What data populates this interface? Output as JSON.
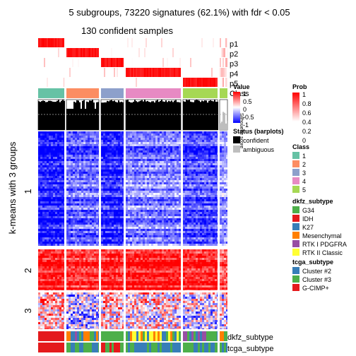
{
  "title": "5 subgroups, 73220 signatures (62.1%) with fdr < 0.05",
  "subtitle": "130 confident samples",
  "row_axis_label": "k-means with 3 groups",
  "row_groups": [
    "1",
    "2",
    "3"
  ],
  "track_labels": {
    "p1": "p1",
    "p2": "p2",
    "p3": "p3",
    "p4": "p4",
    "p5": "p5",
    "class": "Class",
    "silhouette": "Silhouette\nscore"
  },
  "bottom_labels": {
    "dkfz": "dkfz_subtype",
    "tcga": "tcga_subtype"
  },
  "legends": {
    "value": {
      "title": "Value",
      "ticks": [
        "1",
        "0.5",
        "0",
        "-0.5",
        "-1"
      ]
    },
    "status": {
      "title": "Status (barplots)",
      "items": [
        {
          "label": "confident",
          "color": "#000000"
        },
        {
          "label": "ambiguous",
          "color": "#bebebe"
        }
      ]
    },
    "prob": {
      "title": "Prob",
      "ticks": [
        "1",
        "0.8",
        "0.6",
        "0.4",
        "0.2",
        "0"
      ]
    },
    "class": {
      "title": "Class",
      "items": [
        {
          "label": "1",
          "color": "#66c2a5"
        },
        {
          "label": "2",
          "color": "#fc8d62"
        },
        {
          "label": "3",
          "color": "#8da0cb"
        },
        {
          "label": "4",
          "color": "#e78ac3"
        },
        {
          "label": "5",
          "color": "#a6d854"
        }
      ]
    },
    "dkfz": {
      "title": "dkfz_subtype",
      "items": [
        {
          "label": "G34",
          "color": "#4daf4a"
        },
        {
          "label": "IDH",
          "color": "#e41a1c"
        },
        {
          "label": "K27",
          "color": "#377eb8"
        },
        {
          "label": "Mesenchymal",
          "color": "#ff7f00"
        },
        {
          "label": "RTK I PDGFRA",
          "color": "#984ea3"
        },
        {
          "label": "RTK II Classic",
          "color": "#ffff33"
        }
      ]
    },
    "tcga": {
      "title": "tcga_subtype",
      "items": [
        {
          "label": "Cluster #2",
          "color": "#377eb8"
        },
        {
          "label": "Cluster #3",
          "color": "#4daf4a"
        },
        {
          "label": "G-CIMP+",
          "color": "#e41a1c"
        }
      ]
    }
  },
  "colors": {
    "high": "#ff0000",
    "mid": "#ffffff",
    "low": "#0000ff",
    "ambiguous": "#bebebe"
  },
  "chart_data": {
    "type": "heatmap",
    "title": "5 subgroups, 73220 signatures (62.1%) with fdr < 0.05",
    "subtitle": "130 confident samples",
    "ylabel": "k-means with 3 groups",
    "column_groups": [
      "1",
      "2",
      "3",
      "4",
      "5"
    ],
    "row_groups": [
      "1",
      "2",
      "3"
    ],
    "value_range": [
      -1,
      1
    ],
    "prob_range": [
      0,
      1
    ],
    "group_patterns": [
      {
        "row_group": "1",
        "levels": [
          -0.9,
          -0.6,
          -0.85,
          -0.5,
          -0.7,
          -0.4
        ]
      },
      {
        "row_group": "2",
        "levels": [
          0.9,
          0.8,
          0.85,
          0.9,
          0.85,
          0.6
        ]
      },
      {
        "row_group": "3",
        "levels": [
          0.3,
          -0.2,
          0.2,
          0.1,
          -0.1,
          0.0
        ]
      }
    ]
  }
}
